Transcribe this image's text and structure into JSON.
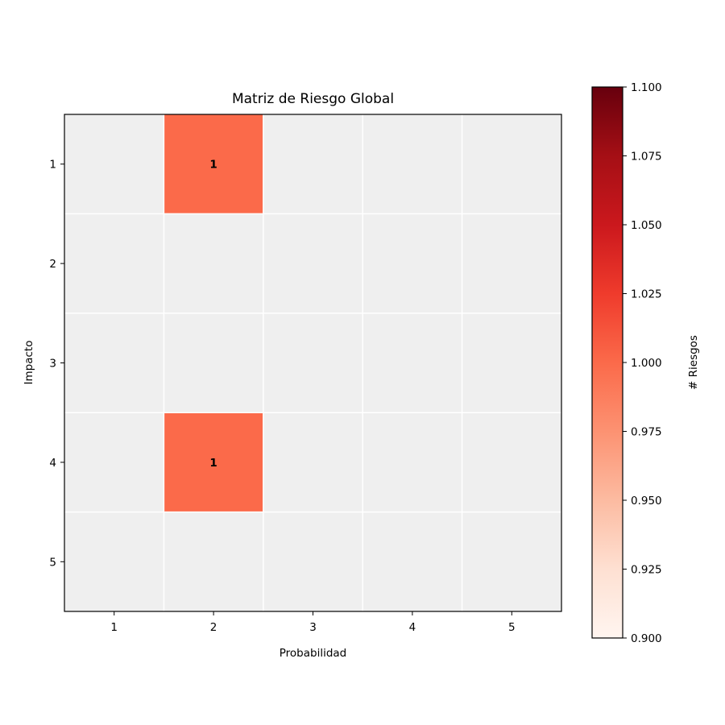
{
  "chart_data": {
    "type": "heatmap",
    "title": "Matriz de Riesgo Global",
    "xlabel": "Probabilidad",
    "ylabel": "Impacto",
    "x_categories": [
      "1",
      "2",
      "3",
      "4",
      "5"
    ],
    "y_categories": [
      "1",
      "2",
      "3",
      "4",
      "5"
    ],
    "cells": [
      {
        "probabilidad": 2,
        "impacto": 1,
        "value": 1,
        "label": "1"
      },
      {
        "probabilidad": 2,
        "impacto": 4,
        "value": 1,
        "label": "1"
      }
    ],
    "empty_color": "#efefef",
    "cell_color": "#fb6a4a",
    "colorbar": {
      "label": "# Riesgos",
      "range": [
        0.9,
        1.1
      ],
      "ticks": [
        "0.900",
        "0.925",
        "0.950",
        "0.975",
        "1.000",
        "1.025",
        "1.050",
        "1.075",
        "1.100"
      ],
      "colormap": "Reds",
      "stops": [
        "#fff5f0",
        "#fee0d2",
        "#fcbba1",
        "#fc9272",
        "#fb6a4a",
        "#ef3b2c",
        "#cb181d",
        "#a50f15",
        "#67000d"
      ]
    },
    "grid": true
  }
}
